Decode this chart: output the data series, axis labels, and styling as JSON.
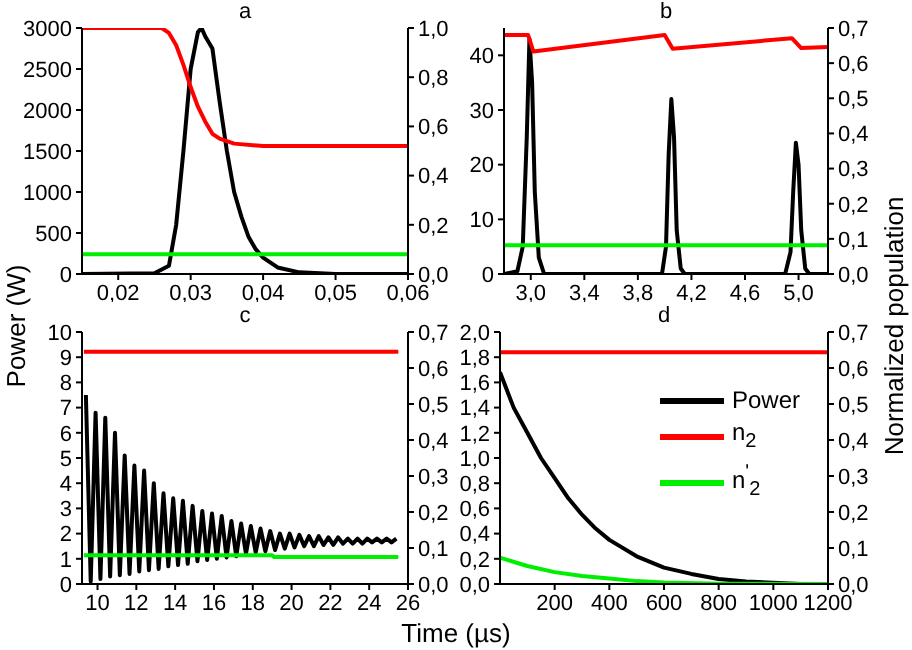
{
  "chart_data": [
    {
      "type": "line",
      "title": "a",
      "xlim": [
        0.015,
        0.06
      ],
      "xticks": [
        {
          "value": 0.02,
          "label": "0,02"
        },
        {
          "value": 0.03,
          "label": "0,03"
        },
        {
          "value": 0.04,
          "label": "0,04"
        },
        {
          "value": 0.05,
          "label": "0,05"
        },
        {
          "value": 0.06,
          "label": "0,06"
        }
      ],
      "ylim": [
        0,
        3000
      ],
      "yticks": [
        0,
        500,
        1000,
        1500,
        2000,
        2500,
        3000
      ],
      "y2lim": [
        0,
        1
      ],
      "y2ticks": [
        {
          "value": 0,
          "label": "0,0"
        },
        {
          "value": 0.2,
          "label": "0,2"
        },
        {
          "value": 0.4,
          "label": "0,4"
        },
        {
          "value": 0.6,
          "label": "0,6"
        },
        {
          "value": 0.8,
          "label": "0,8"
        },
        {
          "value": 1,
          "label": "1,0"
        }
      ],
      "series": [
        {
          "color": "#000000",
          "x": [
            0.015,
            0.025,
            0.027,
            0.028,
            0.029,
            0.03,
            0.031,
            0.0315,
            0.032,
            0.033,
            0.034,
            0.035,
            0.036,
            0.037,
            0.038,
            0.039,
            0.04,
            0.042,
            0.045,
            0.05,
            0.06
          ],
          "values": [
            0,
            10,
            100,
            600,
            1500,
            2500,
            2950,
            3000,
            2900,
            2750,
            2100,
            1500,
            1000,
            700,
            450,
            300,
            200,
            80,
            20,
            0,
            0
          ]
        },
        {
          "color": "#ff0000",
          "axis": "y2",
          "x": [
            0.015,
            0.026,
            0.027,
            0.028,
            0.029,
            0.03,
            0.031,
            0.032,
            0.033,
            0.034,
            0.036,
            0.04,
            0.06
          ],
          "values": [
            1,
            1,
            0.98,
            0.93,
            0.85,
            0.76,
            0.68,
            0.62,
            0.57,
            0.55,
            0.53,
            0.52,
            0.52
          ]
        },
        {
          "color": "#00ee00",
          "axis": "y2",
          "x": [
            0.015,
            0.06
          ],
          "values": [
            0.08,
            0.08
          ]
        }
      ]
    },
    {
      "type": "line",
      "title": "b",
      "xlim": [
        2.8,
        5.22
      ],
      "xticks": [
        {
          "value": 3,
          "label": "3,0"
        },
        {
          "value": 3.4,
          "label": "3,4"
        },
        {
          "value": 3.8,
          "label": "3,8"
        },
        {
          "value": 4.2,
          "label": "4,2"
        },
        {
          "value": 4.6,
          "label": "4,6"
        },
        {
          "value": 5,
          "label": "5,0"
        }
      ],
      "ylim": [
        0,
        45
      ],
      "yticks": [
        0,
        10,
        20,
        30,
        40
      ],
      "y2lim": [
        0,
        0.7
      ],
      "y2ticks": [
        {
          "value": 0,
          "label": "0,0"
        },
        {
          "value": 0.1,
          "label": "0,1"
        },
        {
          "value": 0.2,
          "label": "0,2"
        },
        {
          "value": 0.3,
          "label": "0,3"
        },
        {
          "value": 0.4,
          "label": "0,4"
        },
        {
          "value": 0.5,
          "label": "0,5"
        },
        {
          "value": 0.6,
          "label": "0,6"
        },
        {
          "value": 0.7,
          "label": "0,7"
        }
      ],
      "series": [
        {
          "color": "#000000",
          "x": [
            2.8,
            2.9,
            2.94,
            2.97,
            2.99,
            3.01,
            3.03,
            3.06,
            3.1,
            3.98,
            4.01,
            4.03,
            4.05,
            4.07,
            4.09,
            4.12,
            4.15,
            4.9,
            4.94,
            4.96,
            4.98,
            5,
            5.02,
            5.05,
            5.08,
            5.22
          ],
          "values": [
            0,
            0.5,
            5,
            25,
            43,
            35,
            15,
            3,
            0,
            0,
            5,
            22,
            32,
            25,
            8,
            1,
            0,
            0,
            4,
            15,
            24,
            20,
            8,
            1,
            0,
            0
          ]
        },
        {
          "color": "#ff0000",
          "axis": "y2",
          "x": [
            2.8,
            2.98,
            3.02,
            4.0,
            4.06,
            4.95,
            5.02,
            5.22
          ],
          "values": [
            0.68,
            0.68,
            0.633,
            0.68,
            0.641,
            0.671,
            0.643,
            0.646
          ]
        },
        {
          "color": "#00ee00",
          "axis": "y2",
          "x": [
            2.8,
            5.22
          ],
          "values": [
            0.082,
            0.082
          ]
        }
      ]
    },
    {
      "type": "line",
      "title": "c",
      "ylabel": "Power (W)",
      "xlim": [
        9.2,
        26
      ],
      "xticks": [
        10,
        12,
        14,
        16,
        18,
        20,
        22,
        24,
        26
      ],
      "ylim": [
        0,
        10
      ],
      "yticks": [
        0,
        1,
        2,
        3,
        4,
        5,
        6,
        7,
        8,
        9,
        10
      ],
      "y2lim": [
        0,
        0.7
      ],
      "y2ticks": [
        {
          "value": 0,
          "label": "0,0"
        },
        {
          "value": 0.1,
          "label": "0,1"
        },
        {
          "value": 0.2,
          "label": "0,2"
        },
        {
          "value": 0.3,
          "label": "0,3"
        },
        {
          "value": 0.4,
          "label": "0,4"
        },
        {
          "value": 0.5,
          "label": "0,5"
        },
        {
          "value": 0.6,
          "label": "0,6"
        },
        {
          "value": 0.7,
          "label": "0,7"
        }
      ],
      "series": [
        {
          "color": "#000000",
          "x": [
            9.4,
            9.65,
            9.9,
            10.15,
            10.4,
            10.65,
            10.9,
            11.15,
            11.4,
            11.65,
            11.9,
            12.15,
            12.4,
            12.65,
            12.9,
            13.15,
            13.4,
            13.65,
            13.9,
            14.15,
            14.4,
            14.65,
            14.9,
            15.15,
            15.4,
            15.65,
            15.9,
            16.15,
            16.4,
            16.65,
            16.9,
            17.15,
            17.4,
            17.65,
            17.9,
            18.15,
            18.4,
            18.65,
            18.9,
            19.15,
            19.4,
            19.65,
            19.9,
            20.15,
            20.4,
            20.65,
            20.9,
            21.15,
            21.4,
            21.65,
            21.9,
            22.15,
            22.4,
            22.65,
            22.9,
            23.15,
            23.4,
            23.65,
            23.9,
            24.15,
            24.4,
            24.65,
            24.9,
            25.15,
            25.4
          ],
          "values": [
            7.5,
            0.1,
            6.8,
            0.2,
            6.6,
            0.3,
            6.0,
            0.35,
            5.1,
            0.4,
            4.7,
            0.5,
            4.5,
            0.55,
            4.0,
            0.6,
            3.6,
            0.7,
            3.4,
            0.75,
            3.3,
            0.8,
            3.1,
            0.9,
            2.9,
            0.95,
            2.8,
            1.0,
            2.7,
            1.05,
            2.5,
            1.1,
            2.4,
            1.2,
            2.3,
            1.25,
            2.2,
            1.3,
            2.1,
            1.35,
            2.0,
            1.4,
            2.0,
            1.45,
            1.95,
            1.5,
            1.9,
            1.5,
            1.9,
            1.55,
            1.85,
            1.55,
            1.85,
            1.6,
            1.8,
            1.6,
            1.8,
            1.6,
            1.8,
            1.65,
            1.8,
            1.65,
            1.8,
            1.65,
            1.8
          ]
        },
        {
          "color": "#ff0000",
          "axis": "y2",
          "x": [
            9.3,
            25.5
          ],
          "values": [
            0.645,
            0.645
          ]
        },
        {
          "color": "#00ee00",
          "axis": "y2",
          "x": [
            9.3,
            19,
            19.1,
            25.5
          ],
          "values": [
            0.08,
            0.08,
            0.075,
            0.075
          ]
        }
      ]
    },
    {
      "type": "line",
      "title": "d",
      "xlabel": "Time (µs)",
      "y2label": "Normalized population",
      "legend": "right",
      "xlim": [
        0,
        1200
      ],
      "xticks": [
        200,
        400,
        600,
        800,
        1000,
        1200
      ],
      "ylim": [
        0,
        2
      ],
      "yticks": [
        {
          "value": 0,
          "label": "0,0"
        },
        {
          "value": 0.2,
          "label": "0,2"
        },
        {
          "value": 0.4,
          "label": "0,4"
        },
        {
          "value": 0.6,
          "label": "0,6"
        },
        {
          "value": 0.8,
          "label": "0,8"
        },
        {
          "value": 1,
          "label": "1,0"
        },
        {
          "value": 1.2,
          "label": "1,2"
        },
        {
          "value": 1.4,
          "label": "1,4"
        },
        {
          "value": 1.6,
          "label": "1,6"
        },
        {
          "value": 1.8,
          "label": "1,8"
        },
        {
          "value": 2,
          "label": "2,0"
        }
      ],
      "y2lim": [
        0,
        0.7
      ],
      "y2ticks": [
        {
          "value": 0,
          "label": "0,0"
        },
        {
          "value": 0.1,
          "label": "0,1"
        },
        {
          "value": 0.2,
          "label": "0,2"
        },
        {
          "value": 0.3,
          "label": "0,3"
        },
        {
          "value": 0.4,
          "label": "0,4"
        },
        {
          "value": 0.5,
          "label": "0,5"
        },
        {
          "value": 0.6,
          "label": "0,6"
        },
        {
          "value": 0.7,
          "label": "0,7"
        }
      ],
      "series": [
        {
          "name": "Power",
          "color": "#000000",
          "x": [
            0,
            50,
            100,
            150,
            200,
            250,
            300,
            350,
            400,
            500,
            600,
            700,
            800,
            900,
            1000,
            1100,
            1200
          ],
          "values": [
            1.68,
            1.4,
            1.2,
            1.0,
            0.84,
            0.68,
            0.55,
            0.44,
            0.35,
            0.22,
            0.13,
            0.08,
            0.04,
            0.02,
            0.01,
            0,
            0
          ]
        },
        {
          "name": "n$_{2}$",
          "color": "#ff0000",
          "axis": "y2",
          "x": [
            0,
            1200
          ],
          "values": [
            0.644,
            0.644
          ]
        },
        {
          "name": "n$^{'}$$_{2}$",
          "color": "#00ee00",
          "axis": "y2",
          "x": [
            0,
            100,
            200,
            300,
            400,
            500,
            600,
            800,
            1200
          ],
          "values": [
            0.073,
            0.05,
            0.033,
            0.022,
            0.015,
            0.008,
            0.004,
            0.001,
            0
          ]
        }
      ]
    }
  ]
}
